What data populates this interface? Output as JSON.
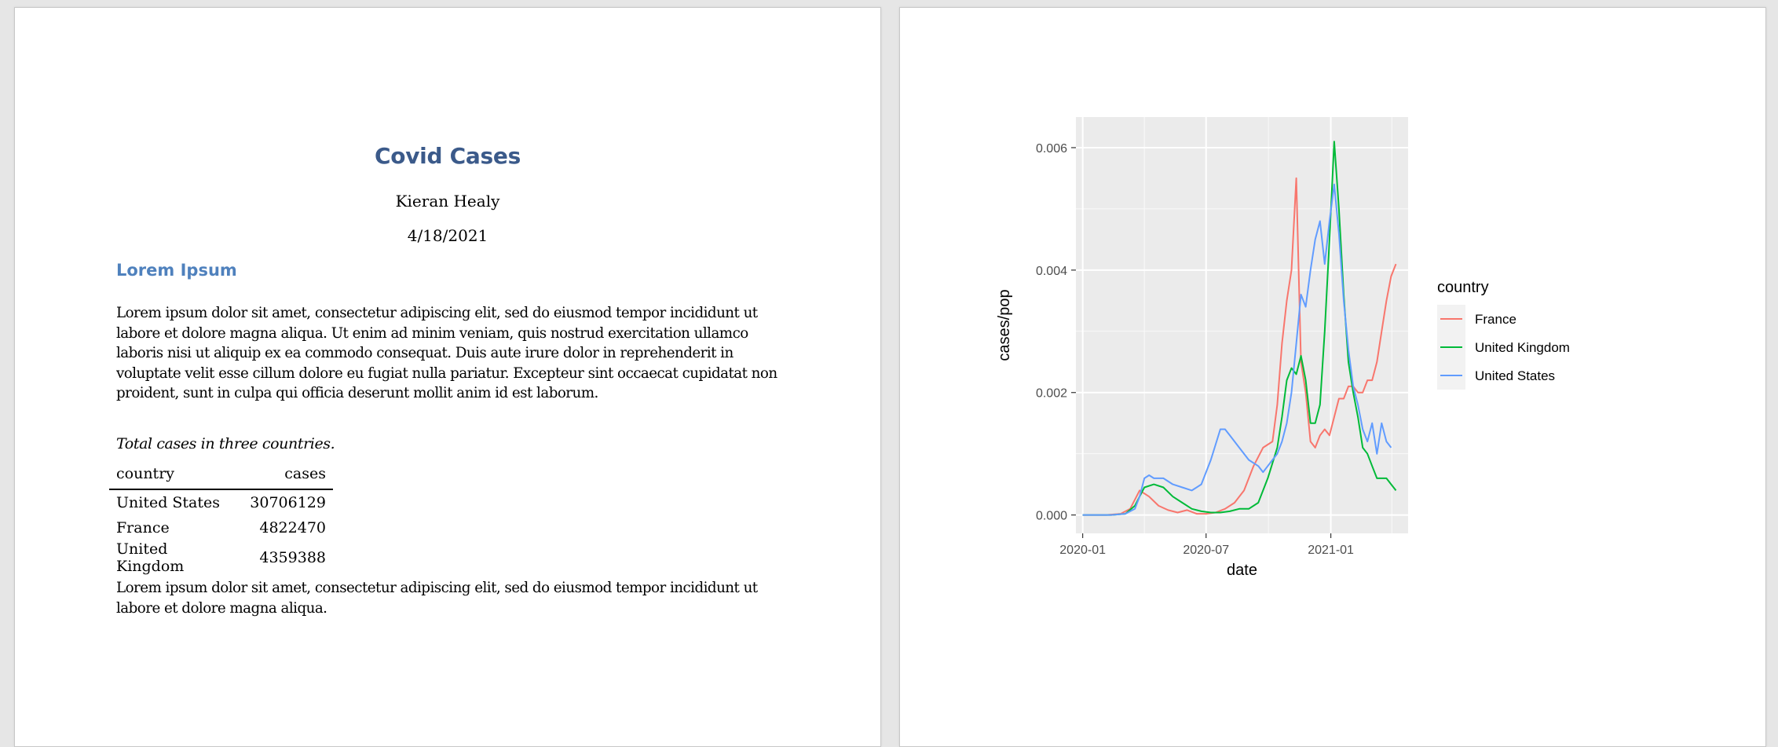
{
  "document": {
    "title": "Covid Cases",
    "author": "Kieran Healy",
    "date": "4/18/2021",
    "section_heading": "Lorem Ipsum",
    "paragraph_1": "Lorem ipsum dolor sit amet, consectetur adipiscing elit, sed do eiusmod tempor incididunt ut labore et dolore magna aliqua. Ut enim ad minim veniam, quis nostrud exercitation ullamco laboris nisi ut aliquip ex ea commodo consequat. Duis aute irure dolor in reprehenderit in voluptate velit esse cillum dolore eu fugiat nulla pariatur. Excepteur sint occaecat cupidatat non proident, sunt in culpa qui officia deserunt mollit anim id est laborum.",
    "table_caption": "Total cases in three countries.",
    "table": {
      "headers": [
        "country",
        "cases"
      ],
      "rows": [
        {
          "country": "United States",
          "cases": "30706129"
        },
        {
          "country": "France",
          "cases": "4822470"
        },
        {
          "country": "United Kingdom",
          "cases": "4359388"
        }
      ]
    },
    "paragraph_2": "Lorem ipsum dolor sit amet, consectetur adipiscing elit, sed do eiusmod tempor incididunt ut labore et dolore magna aliqua."
  },
  "chart_data": {
    "type": "line",
    "xlabel": "date",
    "ylabel": "cases/pop",
    "x_ticks": [
      "2020-01",
      "2020-07",
      "2021-01"
    ],
    "y_ticks": [
      "0.000",
      "0.002",
      "0.004",
      "0.006"
    ],
    "ylim": [
      -0.0003,
      0.0065
    ],
    "xlim": [
      "2019-12-22",
      "2021-04-25"
    ],
    "grid": true,
    "panel_background": "#ebebeb",
    "legend": {
      "title": "country",
      "position": "right"
    },
    "series": [
      {
        "name": "France",
        "color": "#F8766D",
        "points": [
          [
            "2020-01-01",
            0
          ],
          [
            "2020-02-05",
            0
          ],
          [
            "2020-02-26",
            2e-05
          ],
          [
            "2020-03-11",
            0.0001
          ],
          [
            "2020-03-25",
            0.0004
          ],
          [
            "2020-04-08",
            0.0003
          ],
          [
            "2020-04-22",
            0.00015
          ],
          [
            "2020-05-06",
            8e-05
          ],
          [
            "2020-05-20",
            4e-05
          ],
          [
            "2020-06-03",
            8e-05
          ],
          [
            "2020-06-17",
            2e-05
          ],
          [
            "2020-07-01",
            2e-05
          ],
          [
            "2020-07-15",
            4e-05
          ],
          [
            "2020-07-29",
            0.0001
          ],
          [
            "2020-08-12",
            0.0002
          ],
          [
            "2020-08-26",
            0.0004
          ],
          [
            "2020-09-09",
            0.0008
          ],
          [
            "2020-09-23",
            0.0011
          ],
          [
            "2020-10-07",
            0.0012
          ],
          [
            "2020-10-14",
            0.0018
          ],
          [
            "2020-10-21",
            0.0028
          ],
          [
            "2020-10-28",
            0.0035
          ],
          [
            "2020-11-04",
            0.004
          ],
          [
            "2020-11-11",
            0.0055
          ],
          [
            "2020-11-18",
            0.0025
          ],
          [
            "2020-11-25",
            0.002
          ],
          [
            "2020-12-02",
            0.0012
          ],
          [
            "2020-12-09",
            0.0011
          ],
          [
            "2020-12-16",
            0.0013
          ],
          [
            "2020-12-23",
            0.0014
          ],
          [
            "2020-12-30",
            0.0013
          ],
          [
            "2021-01-06",
            0.0016
          ],
          [
            "2021-01-13",
            0.0019
          ],
          [
            "2021-01-20",
            0.0019
          ],
          [
            "2021-01-27",
            0.0021
          ],
          [
            "2021-02-03",
            0.0021
          ],
          [
            "2021-02-10",
            0.002
          ],
          [
            "2021-02-17",
            0.002
          ],
          [
            "2021-02-24",
            0.0022
          ],
          [
            "2021-03-03",
            0.0022
          ],
          [
            "2021-03-10",
            0.0025
          ],
          [
            "2021-03-17",
            0.003
          ],
          [
            "2021-03-24",
            0.0035
          ],
          [
            "2021-03-31",
            0.0039
          ],
          [
            "2021-04-07",
            0.0041
          ]
        ]
      },
      {
        "name": "United Kingdom",
        "color": "#00BA38",
        "points": [
          [
            "2020-01-01",
            0
          ],
          [
            "2020-02-12",
            0
          ],
          [
            "2020-03-04",
            2e-05
          ],
          [
            "2020-03-18",
            0.00015
          ],
          [
            "2020-03-25",
            0.0003
          ],
          [
            "2020-04-01",
            0.00045
          ],
          [
            "2020-04-15",
            0.0005
          ],
          [
            "2020-04-29",
            0.00045
          ],
          [
            "2020-05-13",
            0.0003
          ],
          [
            "2020-05-27",
            0.0002
          ],
          [
            "2020-06-10",
            0.0001
          ],
          [
            "2020-06-24",
            6e-05
          ],
          [
            "2020-07-08",
            4e-05
          ],
          [
            "2020-07-22",
            4e-05
          ],
          [
            "2020-08-05",
            6e-05
          ],
          [
            "2020-08-19",
            0.0001
          ],
          [
            "2020-09-02",
            0.0001
          ],
          [
            "2020-09-16",
            0.0002
          ],
          [
            "2020-09-30",
            0.0006
          ],
          [
            "2020-10-14",
            0.0011
          ],
          [
            "2020-10-21",
            0.0016
          ],
          [
            "2020-10-28",
            0.0022
          ],
          [
            "2020-11-04",
            0.0024
          ],
          [
            "2020-11-11",
            0.0023
          ],
          [
            "2020-11-18",
            0.0026
          ],
          [
            "2020-11-25",
            0.0022
          ],
          [
            "2020-12-02",
            0.0015
          ],
          [
            "2020-12-09",
            0.0015
          ],
          [
            "2020-12-16",
            0.0018
          ],
          [
            "2020-12-23",
            0.003
          ],
          [
            "2020-12-30",
            0.0045
          ],
          [
            "2021-01-06",
            0.0061
          ],
          [
            "2021-01-13",
            0.005
          ],
          [
            "2021-01-20",
            0.0036
          ],
          [
            "2021-01-27",
            0.0025
          ],
          [
            "2021-02-03",
            0.002
          ],
          [
            "2021-02-10",
            0.0016
          ],
          [
            "2021-02-17",
            0.0011
          ],
          [
            "2021-02-24",
            0.001
          ],
          [
            "2021-03-03",
            0.0008
          ],
          [
            "2021-03-10",
            0.0006
          ],
          [
            "2021-03-17",
            0.0006
          ],
          [
            "2021-03-24",
            0.0006
          ],
          [
            "2021-03-31",
            0.0005
          ],
          [
            "2021-04-07",
            0.0004
          ]
        ]
      },
      {
        "name": "United States",
        "color": "#619CFF",
        "points": [
          [
            "2020-01-01",
            0
          ],
          [
            "2020-02-12",
            0
          ],
          [
            "2020-03-04",
            2e-05
          ],
          [
            "2020-03-18",
            0.0001
          ],
          [
            "2020-03-25",
            0.0003
          ],
          [
            "2020-04-01",
            0.0006
          ],
          [
            "2020-04-08",
            0.00065
          ],
          [
            "2020-04-15",
            0.0006
          ],
          [
            "2020-04-29",
            0.0006
          ],
          [
            "2020-05-13",
            0.0005
          ],
          [
            "2020-05-27",
            0.00045
          ],
          [
            "2020-06-10",
            0.0004
          ],
          [
            "2020-06-24",
            0.0005
          ],
          [
            "2020-07-08",
            0.0009
          ],
          [
            "2020-07-22",
            0.0014
          ],
          [
            "2020-07-29",
            0.0014
          ],
          [
            "2020-08-05",
            0.0013
          ],
          [
            "2020-08-19",
            0.0011
          ],
          [
            "2020-09-02",
            0.0009
          ],
          [
            "2020-09-16",
            0.0008
          ],
          [
            "2020-09-23",
            0.0007
          ],
          [
            "2020-09-30",
            0.0008
          ],
          [
            "2020-10-07",
            0.0009
          ],
          [
            "2020-10-14",
            0.001
          ],
          [
            "2020-10-21",
            0.0012
          ],
          [
            "2020-10-28",
            0.0015
          ],
          [
            "2020-11-04",
            0.002
          ],
          [
            "2020-11-11",
            0.0028
          ],
          [
            "2020-11-18",
            0.0036
          ],
          [
            "2020-11-25",
            0.0034
          ],
          [
            "2020-12-02",
            0.004
          ],
          [
            "2020-12-09",
            0.0045
          ],
          [
            "2020-12-16",
            0.0048
          ],
          [
            "2020-12-23",
            0.0041
          ],
          [
            "2020-12-30",
            0.0048
          ],
          [
            "2021-01-06",
            0.0054
          ],
          [
            "2021-01-13",
            0.0046
          ],
          [
            "2021-01-20",
            0.0035
          ],
          [
            "2021-01-27",
            0.0027
          ],
          [
            "2021-02-03",
            0.0021
          ],
          [
            "2021-02-10",
            0.0018
          ],
          [
            "2021-02-17",
            0.0014
          ],
          [
            "2021-02-24",
            0.0012
          ],
          [
            "2021-03-03",
            0.0015
          ],
          [
            "2021-03-10",
            0.001
          ],
          [
            "2021-03-17",
            0.0015
          ],
          [
            "2021-03-24",
            0.0012
          ],
          [
            "2021-03-31",
            0.0011
          ]
        ]
      }
    ]
  }
}
